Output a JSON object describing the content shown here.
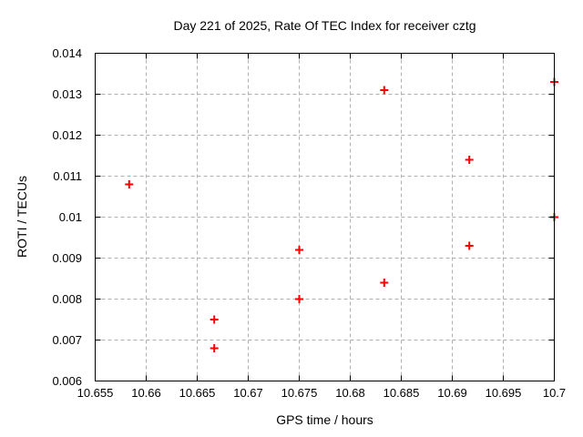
{
  "window": {
    "background": "#ffffff"
  },
  "chart_data": {
    "type": "scatter",
    "title": "Day 221 of 2025, Rate Of TEC Index for receiver cztg",
    "xlabel": "GPS time / hours",
    "ylabel": "ROTI / TECUs",
    "xlim": [
      10.655,
      10.7
    ],
    "ylim": [
      0.006,
      0.014
    ],
    "grid": true,
    "legend": "none",
    "xticks": {
      "values": [
        10.655,
        10.66,
        10.665,
        10.67,
        10.675,
        10.68,
        10.685,
        10.69,
        10.695,
        10.7
      ],
      "labels": [
        "10.655",
        "10.66",
        "10.665",
        "10.67",
        "10.675",
        "10.68",
        "10.685",
        "10.69",
        "10.695",
        "10.7"
      ]
    },
    "yticks": {
      "values": [
        0.006,
        0.007,
        0.008,
        0.009,
        0.01,
        0.011,
        0.012,
        0.013,
        0.014
      ],
      "labels": [
        "0.006",
        "0.007",
        "0.008",
        "0.009",
        "0.01",
        "0.011",
        "0.012",
        "0.013",
        "0.014"
      ]
    },
    "style": {
      "marker_shape": "plus",
      "marker_color": "#ff0000",
      "marker_size_px": 9,
      "marker_stroke_px": 2,
      "grid_color": "#b0b0b0",
      "axis_color": "#000000",
      "text_color": "#000000"
    },
    "series": [
      {
        "name": "roti",
        "points": [
          {
            "x": 10.65833,
            "y": 0.0108
          },
          {
            "x": 10.66667,
            "y": 0.0068
          },
          {
            "x": 10.66667,
            "y": 0.0075
          },
          {
            "x": 10.675,
            "y": 0.008
          },
          {
            "x": 10.675,
            "y": 0.0092
          },
          {
            "x": 10.68333,
            "y": 0.0084
          },
          {
            "x": 10.68333,
            "y": 0.0131
          },
          {
            "x": 10.69167,
            "y": 0.0093
          },
          {
            "x": 10.69167,
            "y": 0.0114
          },
          {
            "x": 10.7,
            "y": 0.01
          },
          {
            "x": 10.7,
            "y": 0.0133
          }
        ]
      }
    ]
  }
}
